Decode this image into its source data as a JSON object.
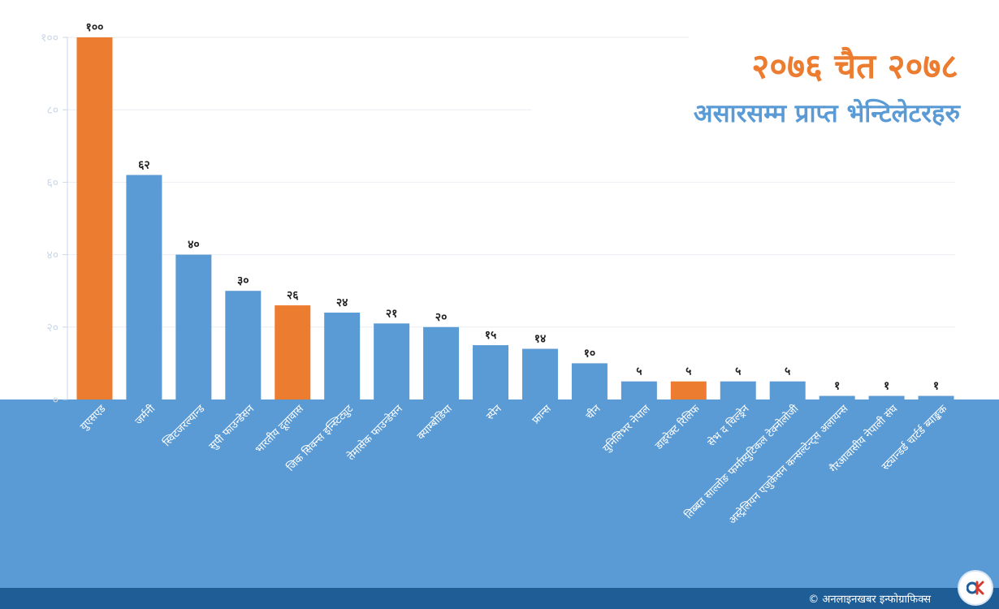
{
  "title": {
    "line1": "२०७६ चैत २०७८",
    "line2": "असारसम्म प्राप्त भेन्टिलेटरहरु"
  },
  "footer": {
    "credit": "© अनलाइनखबर इन्फोग्राफिक्स",
    "logo_icon": "onlinekhabar-logo-icon"
  },
  "colors": {
    "bar": "#5b9bd5",
    "highlight": "#ec7c30",
    "band": "#5b9bd5",
    "footer": "#1f5d97",
    "grid": "#e9edf2",
    "tick": "#c9d7e6"
  },
  "chart_data": {
    "type": "bar",
    "categories": [
      "युएसएड",
      "जर्मनी",
      "स्विटजरल्यान्ड",
      "सुपी फाउन्डेसन",
      "भारतीय दूतावास",
      "जिक सिक्न्स इन्स्टिट्युट",
      "तेमासेक फाउन्डेसन",
      "क्याम्बोडिया",
      "स्पेन",
      "फ्रान्स",
      "चीन",
      "युनिलिभर नेपाल",
      "डाइरेक्ट रिलिफ",
      "सेभ द चिल्ड्रेन",
      "तिब्बत साल्तोङ फर्मास्युटिकल टेक्नोलोजी",
      "अस्ट्रेलियन एजुकेसन कन्सल्टेन्ट्स अलायन्स",
      "गैरआवासीय नेपाली संघ",
      "स्ट्यान्डर्ड चार्टर्ड ब्याङ्कक"
    ],
    "values": [
      100,
      62,
      40,
      30,
      26,
      24,
      21,
      20,
      15,
      14,
      10,
      5,
      5,
      5,
      5,
      1,
      1,
      1
    ],
    "value_labels": [
      "१००",
      "६२",
      "४०",
      "३०",
      "२६",
      "२४",
      "२१",
      "२०",
      "१५",
      "१४",
      "१०",
      "५",
      "५",
      "५",
      "५",
      "१",
      "१",
      "१"
    ],
    "highlight": [
      true,
      false,
      false,
      false,
      true,
      false,
      false,
      false,
      false,
      false,
      false,
      false,
      true,
      false,
      false,
      false,
      false,
      false
    ],
    "yticks": [
      0,
      20,
      40,
      60,
      80,
      100
    ],
    "ytick_labels": [
      "०",
      "२०",
      "४०",
      "६०",
      "८०",
      "१००"
    ],
    "ylim": [
      0,
      100
    ],
    "grid": true
  }
}
